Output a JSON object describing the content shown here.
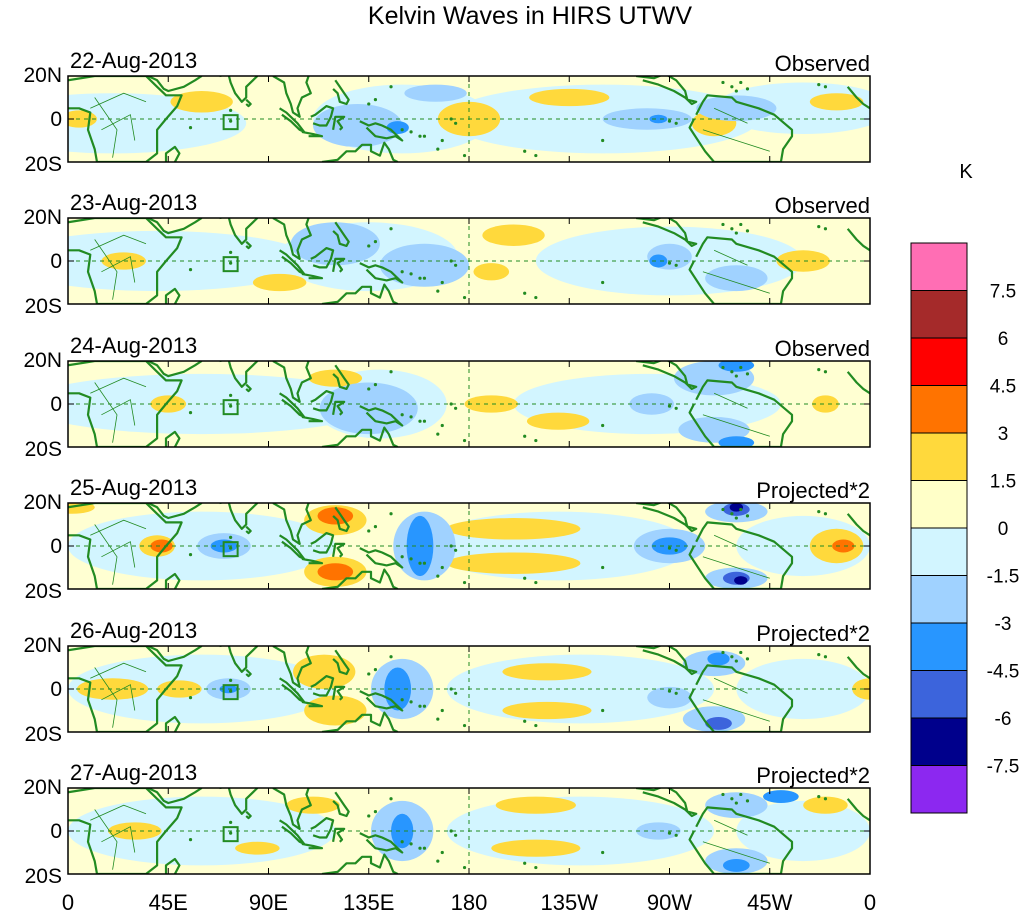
{
  "title": "Kelvin Waves in HIRS UTWV",
  "colorbar": {
    "unit": "K",
    "levels": [
      "7.5",
      "6",
      "4.5",
      "3",
      "1.5",
      "0",
      "-1.5",
      "-3",
      "-4.5",
      "-6",
      "-7.5"
    ],
    "colors": [
      "#ff6eb4",
      "#a52a2a",
      "#ff0000",
      "#ff7300",
      "#ffd93c",
      "#ffffc8",
      "#d2f5ff",
      "#a0d2ff",
      "#2896ff",
      "#3c64dc",
      "#00008c",
      "#8c28f0"
    ]
  },
  "axes": {
    "x_ticks": [
      "0",
      "45E",
      "90E",
      "135E",
      "180",
      "135W",
      "90W",
      "45W",
      "0"
    ],
    "y_ticks": [
      "20N",
      "0",
      "20S"
    ]
  },
  "panels": [
    {
      "date": "22-Aug-2013",
      "kind": "Observed"
    },
    {
      "date": "23-Aug-2013",
      "kind": "Observed"
    },
    {
      "date": "24-Aug-2013",
      "kind": "Observed"
    },
    {
      "date": "25-Aug-2013",
      "kind": "Projected*2"
    },
    {
      "date": "26-Aug-2013",
      "kind": "Projected*2"
    },
    {
      "date": "27-Aug-2013",
      "kind": "Projected*2"
    }
  ],
  "style": {
    "coast_color": "#228b22",
    "base_fill": "#ffffd2",
    "frame_color": "#000000"
  }
}
